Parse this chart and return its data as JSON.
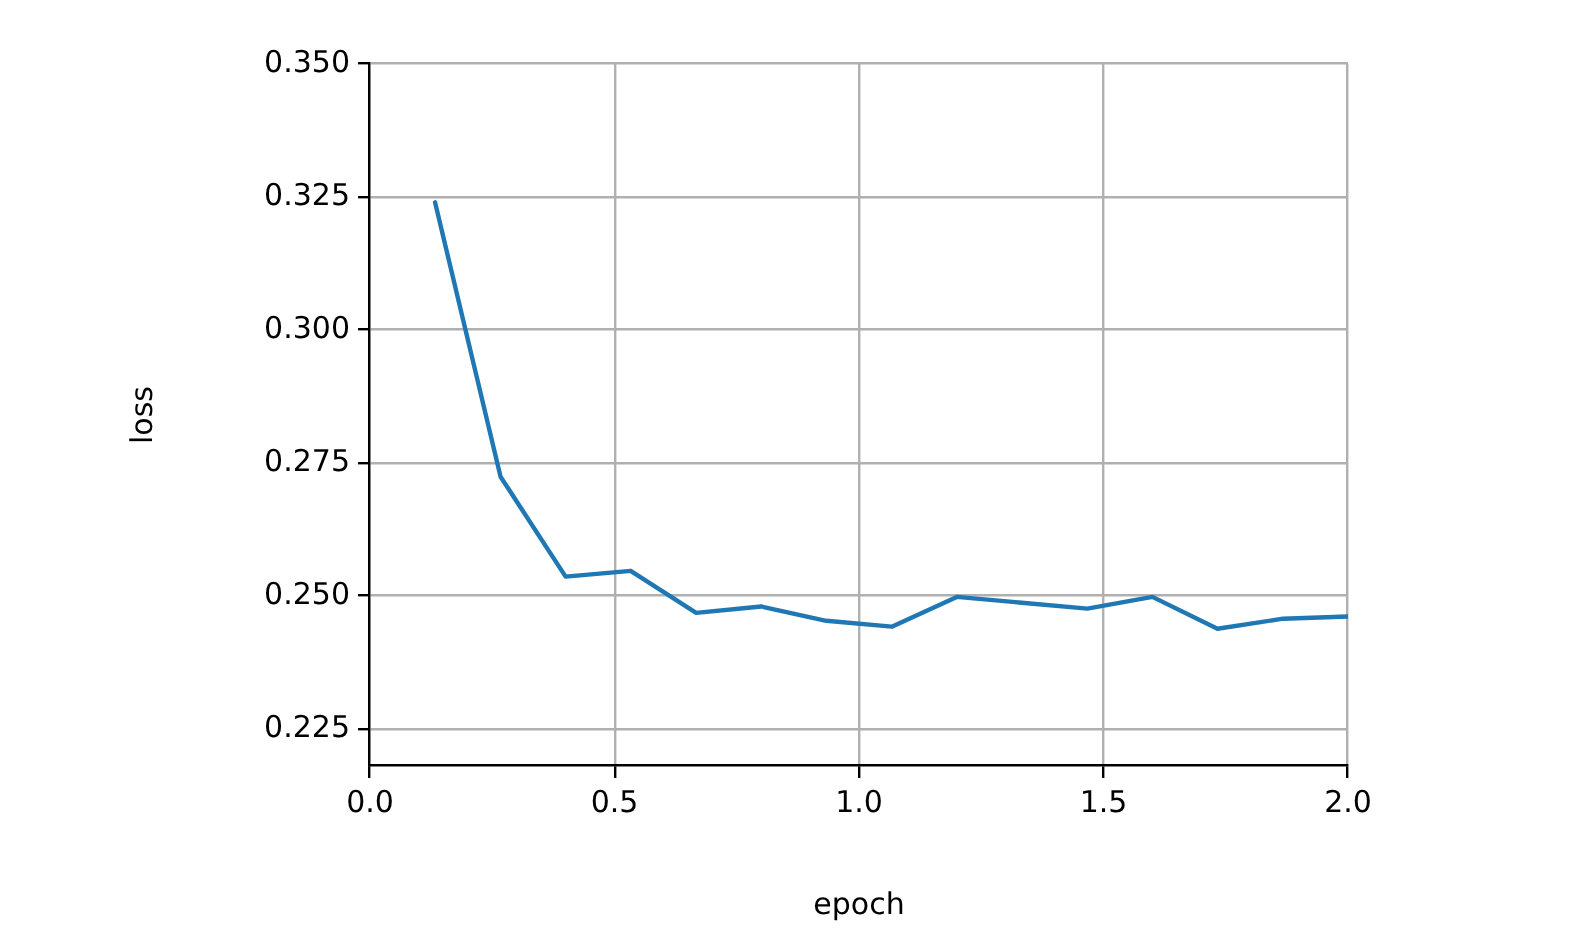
{
  "chart_data": {
    "type": "line",
    "xlabel": "epoch",
    "ylabel": "loss",
    "x": [
      0.133,
      0.267,
      0.4,
      0.533,
      0.667,
      0.8,
      0.933,
      1.067,
      1.2,
      1.333,
      1.467,
      1.6,
      1.733,
      1.867,
      2.0
    ],
    "series": [
      {
        "color": "#1f77b4",
        "values": [
          0.324,
          0.2724,
          0.2536,
          0.2547,
          0.2468,
          0.248,
          0.2453,
          0.2442,
          0.2498,
          0.2487,
          0.2476,
          0.2498,
          0.2438,
          0.2457,
          0.2461
        ]
      }
    ],
    "xlim": [
      0,
      2
    ],
    "xticks": [
      {
        "value": 0,
        "label": "0.0"
      },
      0.5,
      {
        "value": 1,
        "label": "1.0"
      },
      1.5,
      {
        "value": 2,
        "label": "2.0"
      }
    ],
    "ylim": [
      0.218,
      0.35
    ],
    "yticks": [
      0.225,
      {
        "value": 0.25,
        "label": "0.250"
      },
      0.275,
      {
        "value": 0.3,
        "label": "0.300"
      },
      0.325,
      {
        "value": 0.35,
        "label": "0.350"
      }
    ],
    "grid": true,
    "marker": "none",
    "line_style": "solid"
  }
}
